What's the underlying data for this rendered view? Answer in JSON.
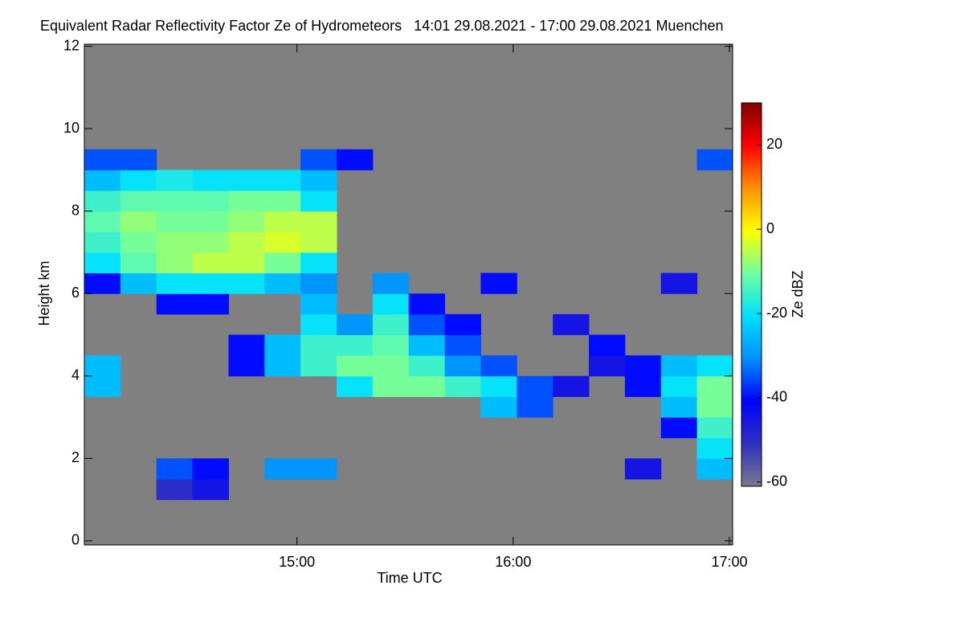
{
  "chart_data": {
    "type": "heatmap",
    "title": "Equivalent Radar Reflectivity Factor Ze of Hydrometeors   14:01 29.08.2021 - 17:00 29.08.2021 Muenchen",
    "xlabel": "Time UTC",
    "ylabel": "Height km",
    "colorbar_label": "Ze dBZ",
    "xlim": [
      14.0167,
      17.015
    ],
    "ylim": [
      -0.1,
      12.05
    ],
    "zlim": [
      -61,
      30
    ],
    "xticks": [
      {
        "value": 15,
        "label": "15:00"
      },
      {
        "value": 16,
        "label": "16:00"
      },
      {
        "value": 17,
        "label": "17:00"
      }
    ],
    "yticks": [
      0,
      2,
      4,
      6,
      8,
      10,
      12
    ],
    "zticks": [
      20,
      0,
      -20,
      -40,
      -60
    ],
    "background": "#808080",
    "colors": [
      "#7a7a8a",
      "#3030c0",
      "#0000ff",
      "#0090ff",
      "#00e0ff",
      "#70ffa0",
      "#ffff00",
      "#ff9000",
      "#ff0000",
      "#800000"
    ],
    "x": [
      14.1,
      14.2667,
      14.4333,
      14.6,
      14.7667,
      14.9333,
      15.1,
      15.2667,
      15.4333,
      15.6,
      15.7667,
      15.9333,
      16.1,
      16.2667,
      16.4333,
      16.6,
      16.7667,
      16.9333
    ],
    "y": [
      0.25,
      0.75,
      1.25,
      1.75,
      2.25,
      2.75,
      3.25,
      3.75,
      4.25,
      4.75,
      5.25,
      5.75,
      6.25,
      6.75,
      7.25,
      7.75,
      8.25,
      8.75,
      9.25,
      9.75,
      10.25,
      10.75,
      11.25,
      11.75
    ],
    "z": [
      [
        null,
        null,
        null,
        null,
        null,
        null,
        null,
        null,
        null,
        null,
        null,
        null,
        null,
        null,
        null,
        null,
        null,
        null
      ],
      [
        null,
        null,
        null,
        null,
        null,
        null,
        null,
        null,
        null,
        null,
        null,
        null,
        null,
        null,
        null,
        null,
        null,
        null
      ],
      [
        null,
        null,
        -50,
        -45,
        null,
        null,
        null,
        null,
        null,
        null,
        null,
        null,
        null,
        null,
        null,
        null,
        null,
        null
      ],
      [
        null,
        null,
        -35,
        -40,
        null,
        -30,
        -30,
        null,
        null,
        null,
        null,
        null,
        null,
        null,
        null,
        -45,
        null,
        -25
      ],
      [
        null,
        null,
        null,
        null,
        null,
        null,
        null,
        null,
        null,
        null,
        null,
        null,
        null,
        null,
        null,
        null,
        null,
        -20
      ],
      [
        null,
        null,
        null,
        null,
        null,
        null,
        null,
        null,
        null,
        null,
        null,
        null,
        null,
        null,
        null,
        null,
        -40,
        -15
      ],
      [
        null,
        null,
        null,
        null,
        null,
        null,
        null,
        null,
        null,
        null,
        null,
        -25,
        -35,
        null,
        null,
        null,
        -25,
        -10
      ],
      [
        -25,
        null,
        null,
        null,
        null,
        null,
        null,
        -20,
        -10,
        -10,
        -15,
        -20,
        -35,
        -45,
        null,
        -40,
        -20,
        -10
      ],
      [
        -25,
        null,
        null,
        null,
        -40,
        -25,
        -15,
        -10,
        -10,
        -15,
        -30,
        -35,
        null,
        null,
        -45,
        -40,
        -25,
        -20
      ],
      [
        null,
        null,
        null,
        null,
        -40,
        -25,
        -15,
        -15,
        -12,
        -25,
        -35,
        null,
        null,
        null,
        -40,
        null,
        null,
        null
      ],
      [
        null,
        null,
        null,
        null,
        null,
        null,
        -20,
        -30,
        -15,
        -35,
        -40,
        null,
        null,
        -45,
        null,
        null,
        null,
        null
      ],
      [
        null,
        null,
        -40,
        -40,
        null,
        null,
        -25,
        null,
        -20,
        -40,
        null,
        null,
        null,
        null,
        null,
        null,
        null,
        null
      ],
      [
        -40,
        -25,
        -20,
        -20,
        -20,
        -25,
        -30,
        null,
        -30,
        null,
        null,
        -40,
        null,
        null,
        null,
        null,
        -45,
        null
      ],
      [
        -20,
        -12,
        -8,
        -5,
        -5,
        -10,
        -20,
        null,
        null,
        null,
        null,
        null,
        null,
        null,
        null,
        null,
        null,
        null
      ],
      [
        -15,
        -10,
        -8,
        -8,
        -5,
        -3,
        -5,
        null,
        null,
        null,
        null,
        null,
        null,
        null,
        null,
        null,
        null,
        null
      ],
      [
        -12,
        -8,
        -10,
        -10,
        -8,
        -5,
        -5,
        null,
        null,
        null,
        null,
        null,
        null,
        null,
        null,
        null,
        null,
        null
      ],
      [
        -15,
        -12,
        -12,
        -12,
        -10,
        -10,
        -20,
        null,
        null,
        null,
        null,
        null,
        null,
        null,
        null,
        null,
        null,
        null
      ],
      [
        -25,
        -20,
        -18,
        -20,
        -20,
        -20,
        -25,
        null,
        null,
        null,
        null,
        null,
        null,
        null,
        null,
        null,
        null,
        null
      ],
      [
        -35,
        -35,
        null,
        null,
        null,
        null,
        -35,
        -40,
        null,
        null,
        null,
        null,
        null,
        null,
        null,
        null,
        null,
        -35
      ],
      [
        null,
        null,
        null,
        null,
        null,
        null,
        null,
        null,
        null,
        null,
        null,
        null,
        null,
        null,
        null,
        null,
        null,
        null
      ],
      [
        null,
        null,
        null,
        null,
        null,
        null,
        null,
        null,
        null,
        null,
        null,
        null,
        null,
        null,
        null,
        null,
        null,
        null
      ],
      [
        null,
        null,
        null,
        null,
        null,
        null,
        null,
        null,
        null,
        null,
        null,
        null,
        null,
        null,
        null,
        null,
        null,
        null
      ],
      [
        null,
        null,
        null,
        null,
        null,
        null,
        null,
        null,
        null,
        null,
        null,
        null,
        null,
        null,
        null,
        null,
        null,
        null
      ],
      [
        null,
        null,
        null,
        null,
        null,
        null,
        null,
        null,
        null,
        null,
        null,
        null,
        null,
        null,
        null,
        null,
        null,
        null
      ]
    ]
  }
}
